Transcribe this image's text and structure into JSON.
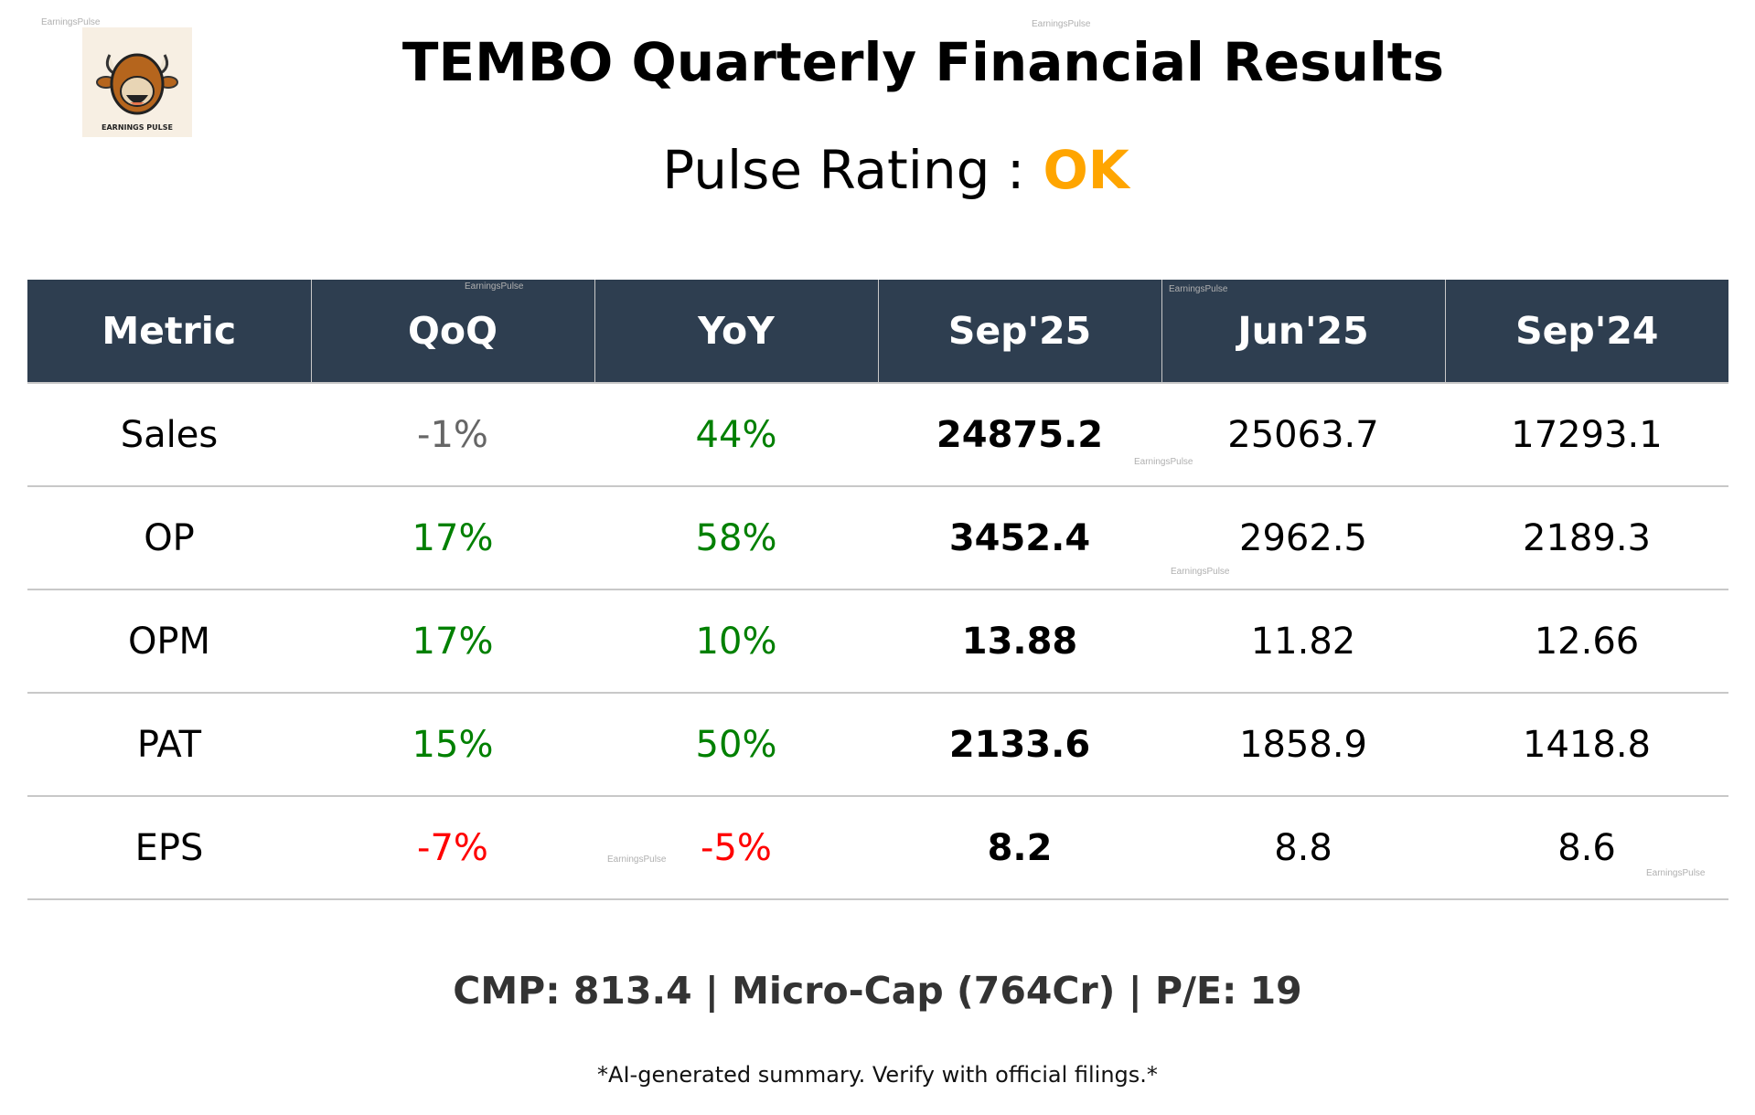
{
  "watermark": "EarningsPulse",
  "logo_text": "EARNINGS PULSE",
  "title": "TEMBO Quarterly Financial Results",
  "rating": {
    "label": "Pulse Rating :",
    "value": "OK",
    "color": "#ffa500"
  },
  "table": {
    "headers": [
      "Metric",
      "QoQ",
      "YoY",
      "Sep'25",
      "Jun'25",
      "Sep'24"
    ],
    "rows": [
      {
        "metric": "Sales",
        "qoq": "-1%",
        "qoq_tone": "flat",
        "yoy": "44%",
        "yoy_tone": "pos",
        "cur": "24875.2",
        "prev": "25063.7",
        "ly": "17293.1"
      },
      {
        "metric": "OP",
        "qoq": "17%",
        "qoq_tone": "pos",
        "yoy": "58%",
        "yoy_tone": "pos",
        "cur": "3452.4",
        "prev": "2962.5",
        "ly": "2189.3"
      },
      {
        "metric": "OPM",
        "qoq": "17%",
        "qoq_tone": "pos",
        "yoy": "10%",
        "yoy_tone": "pos",
        "cur": "13.88",
        "prev": "11.82",
        "ly": "12.66"
      },
      {
        "metric": "PAT",
        "qoq": "15%",
        "qoq_tone": "pos",
        "yoy": "50%",
        "yoy_tone": "pos",
        "cur": "2133.6",
        "prev": "1858.9",
        "ly": "1418.8"
      },
      {
        "metric": "EPS",
        "qoq": "-7%",
        "qoq_tone": "neg",
        "yoy": "-5%",
        "yoy_tone": "neg",
        "cur": "8.2",
        "prev": "8.8",
        "ly": "8.6"
      }
    ]
  },
  "summary": "CMP: 813.4 | Micro-Cap (764Cr) | P/E: 19",
  "footnote": "*AI-generated summary. Verify with official filings.*",
  "colors": {
    "header_bg": "#2e3e50",
    "positive": "#008000",
    "negative": "#ff0000",
    "neutral": "#666666"
  }
}
